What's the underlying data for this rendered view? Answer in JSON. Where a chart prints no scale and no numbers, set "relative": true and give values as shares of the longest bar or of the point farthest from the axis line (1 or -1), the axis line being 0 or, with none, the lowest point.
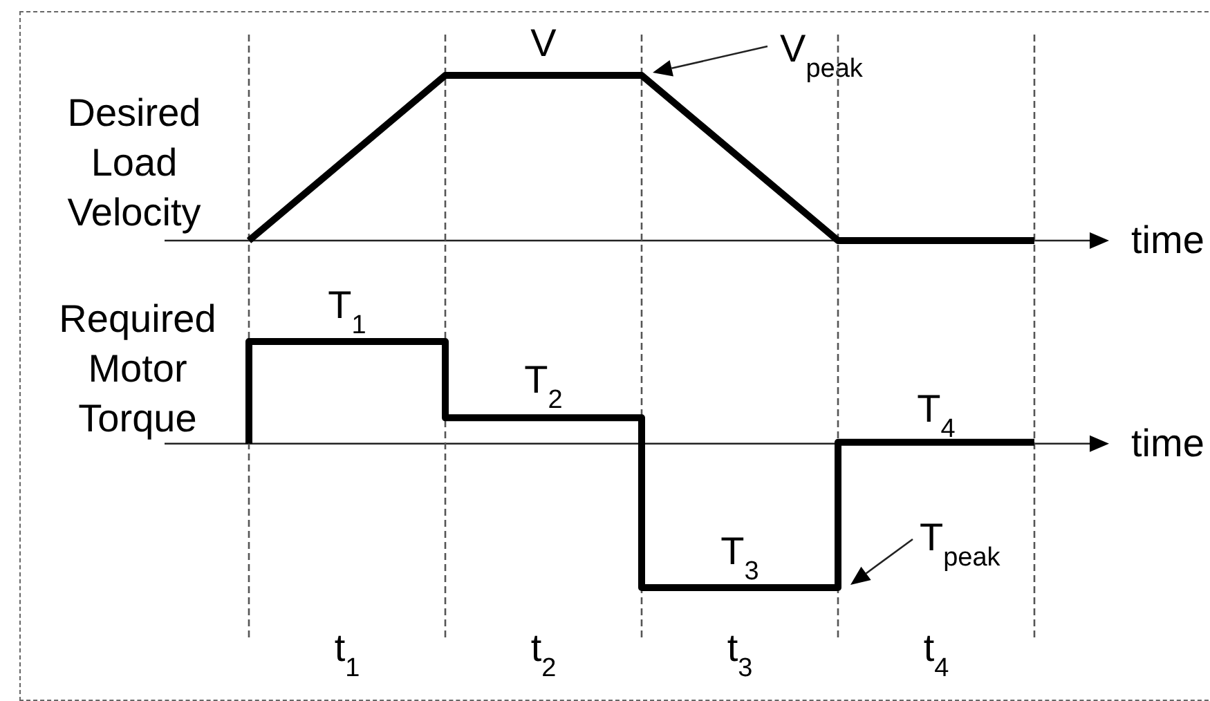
{
  "chart_data": [
    {
      "type": "line",
      "ylabel": "Desired Load Velocity",
      "xlabel": "time",
      "categories": [
        null,
        null,
        null,
        null,
        null
      ],
      "series": [
        {
          "color": "#000000",
          "values": [
            0,
            1,
            1,
            0,
            0
          ]
        }
      ],
      "relative": true,
      "grid": "x",
      "annotations": [
        {
          "text": "V",
          "y": 1
        },
        "V$_{peak}$"
      ]
    },
    {
      "type": "step",
      "ylabel": "Required Motor Torque",
      "xlabel": "time",
      "categories": [
        null,
        null,
        null,
        null,
        null
      ],
      "series": [
        {
          "color": "#000000",
          "values": [
            0,
            0.71,
            0.18,
            -1,
            0.01
          ]
        }
      ],
      "relative": true,
      "grid": "x",
      "annotations": [
        {
          "text": "T$_{1}$",
          "y": 0.71
        },
        {
          "text": "T$_{2}$",
          "y": 0.18
        },
        {
          "text": "T$_{3}$",
          "y": -1
        },
        {
          "text": "T$_{4}$",
          "y": 0.01
        },
        "T$_{peak}$",
        "t$_{1}$",
        "t$_{2}$",
        "t$_{3}$",
        "t$_{4}$"
      ]
    }
  ]
}
